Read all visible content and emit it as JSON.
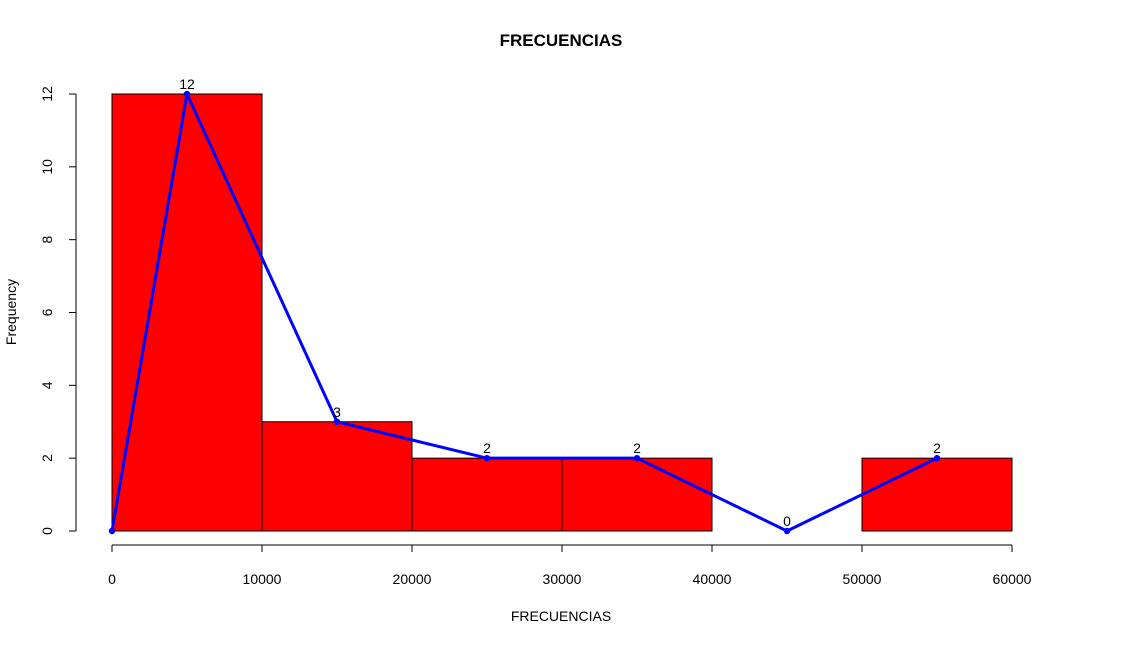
{
  "chart_data": {
    "type": "bar",
    "title": "FRECUENCIAS",
    "xlabel": "FRECUENCIAS",
    "ylabel": "Frequency",
    "bins": [
      {
        "start": 0,
        "end": 10000,
        "count": 12
      },
      {
        "start": 10000,
        "end": 20000,
        "count": 3
      },
      {
        "start": 20000,
        "end": 30000,
        "count": 2
      },
      {
        "start": 30000,
        "end": 40000,
        "count": 2
      },
      {
        "start": 40000,
        "end": 50000,
        "count": 0
      },
      {
        "start": 50000,
        "end": 60000,
        "count": 2
      }
    ],
    "polygon": {
      "x": [
        0,
        5000,
        15000,
        25000,
        35000,
        45000,
        55000
      ],
      "y": [
        0,
        12,
        3,
        2,
        2,
        0,
        2
      ]
    },
    "data_labels": [
      "12",
      "3",
      "2",
      "2",
      "0",
      "2"
    ],
    "x_ticks": [
      "0",
      "10000",
      "20000",
      "30000",
      "40000",
      "50000",
      "60000"
    ],
    "x_tick_values": [
      0,
      10000,
      20000,
      30000,
      40000,
      50000,
      60000
    ],
    "y_ticks": [
      "0",
      "2",
      "4",
      "6",
      "8",
      "10",
      "12"
    ],
    "y_tick_values": [
      0,
      2,
      4,
      6,
      8,
      10,
      12
    ],
    "xlim": [
      0,
      60000
    ],
    "ylim": [
      0,
      12
    ],
    "grid": false,
    "colors": {
      "bar_fill": "#ff0000",
      "bar_border": "#000000",
      "polygon_line": "#0000ff",
      "polygon_point": "#0000ff"
    }
  }
}
